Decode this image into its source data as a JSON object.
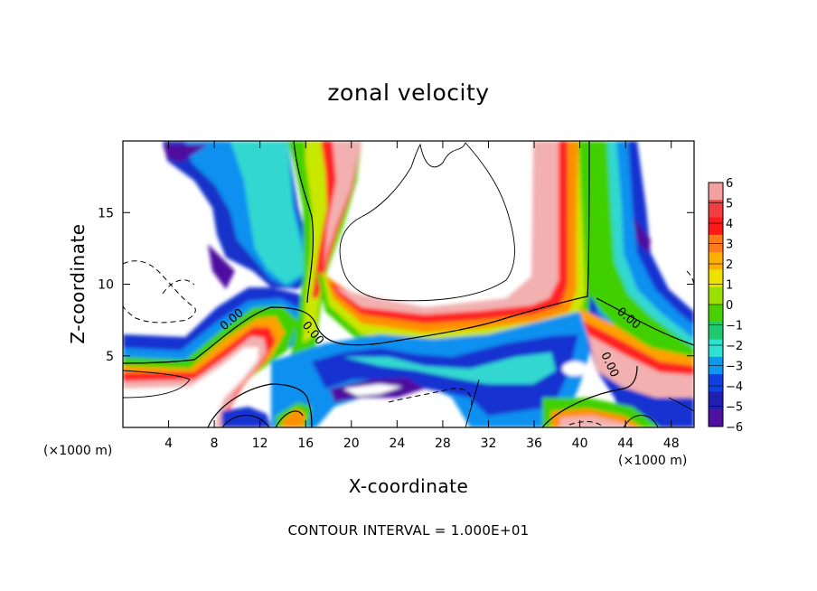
{
  "chart_data": {
    "type": "heatmap",
    "title": "zonal velocity",
    "xlabel": "X-coordinate",
    "ylabel": "Z-coordinate",
    "x_unit": "(×1000 m)",
    "x_ticks": [
      4,
      8,
      12,
      16,
      20,
      24,
      28,
      32,
      36,
      40,
      44,
      48
    ],
    "y_ticks": [
      5,
      10,
      15
    ],
    "xlim": [
      0,
      50
    ],
    "ylim": [
      0,
      20
    ],
    "colorbar": {
      "ticks": [
        6,
        5,
        4,
        3,
        2,
        1,
        0,
        -1,
        -2,
        -3,
        -4,
        -5,
        -6
      ],
      "range": [
        -6,
        6
      ],
      "colors": [
        "#f2a0a0",
        "#f04040",
        "#ff1a1a",
        "#ff7a1a",
        "#ffb000",
        "#f0e000",
        "#9be000",
        "#4ad000",
        "#20c870",
        "#30e0d0",
        "#1098f0",
        "#1040e0",
        "#2020b0",
        "#5010a0"
      ]
    },
    "contour_labels": [
      "0.00",
      "0.00",
      "0.00",
      "0.00"
    ],
    "footer": "CONTOUR INTERVAL = 1.000E+01"
  }
}
